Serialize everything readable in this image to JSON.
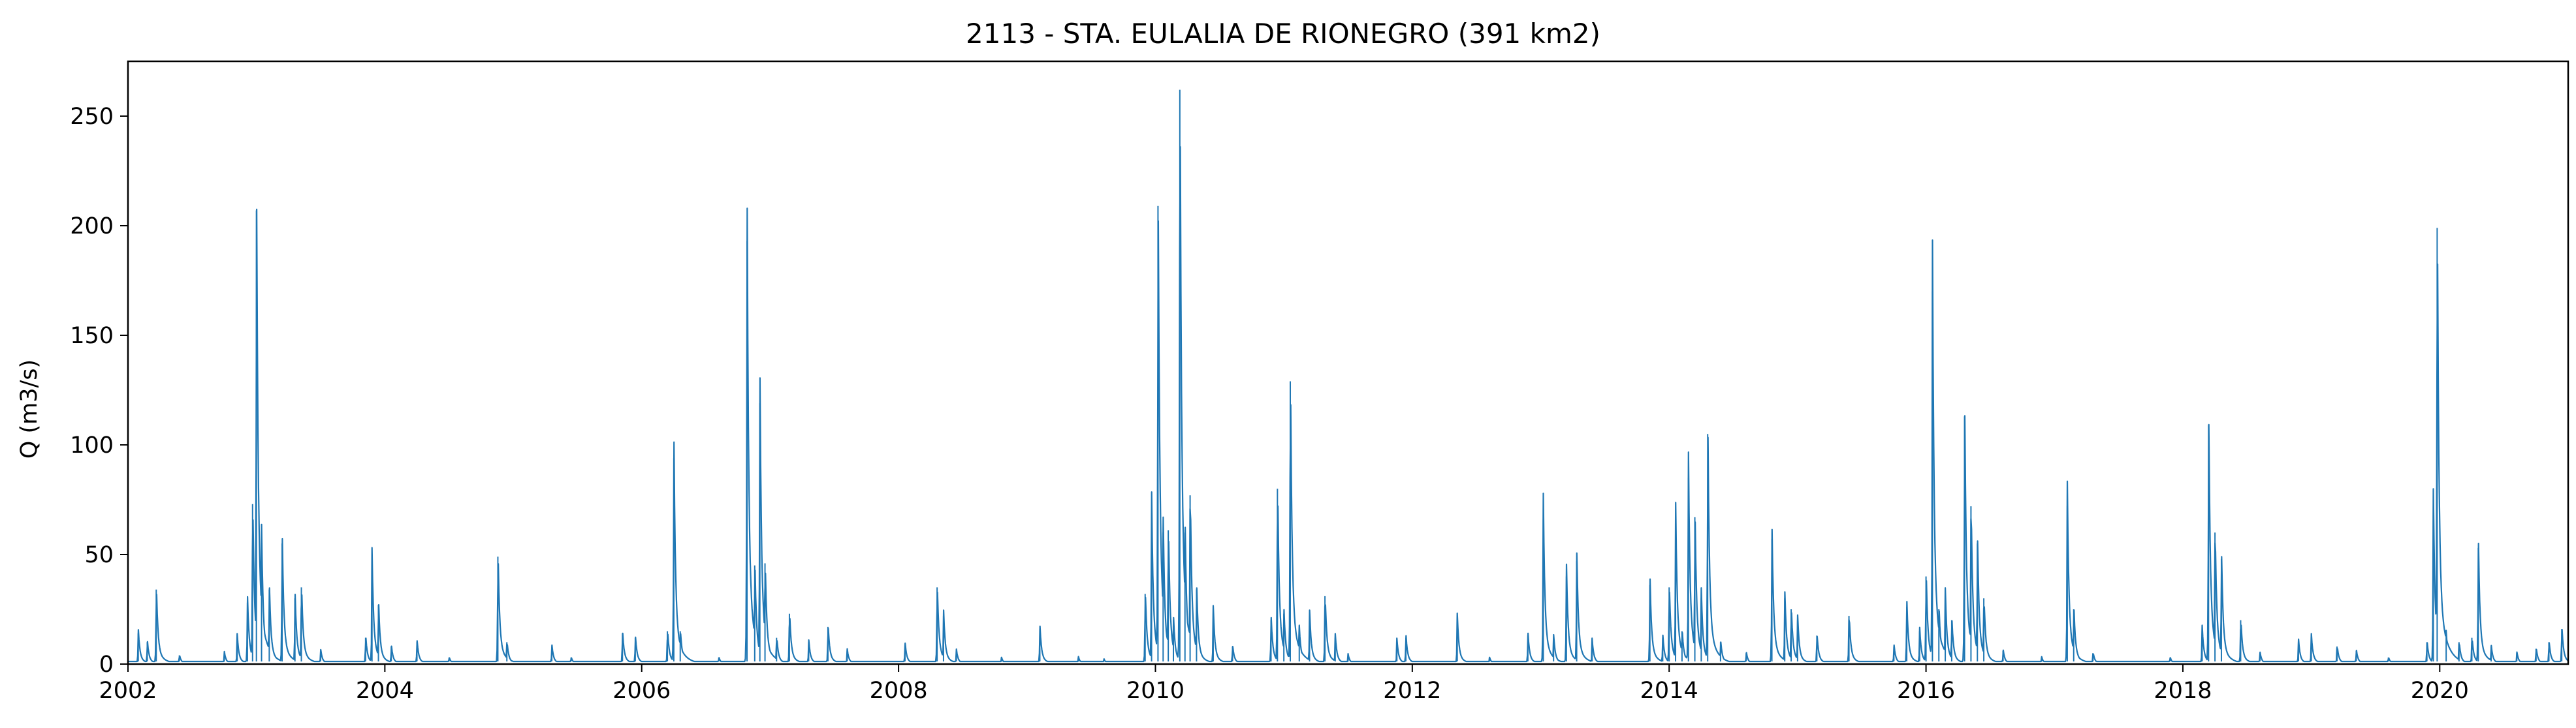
{
  "chart_data": {
    "type": "line",
    "title": "2113 - STA. EULALIA DE RIONEGRO (391 km2)",
    "xlabel": "",
    "ylabel": "Q (m3/s)",
    "xlim": [
      2002.0,
      2021.0
    ],
    "ylim": [
      0,
      275
    ],
    "x_ticks": [
      2002,
      2004,
      2006,
      2008,
      2010,
      2012,
      2014,
      2016,
      2018,
      2020
    ],
    "x_tick_labels": [
      "2002",
      "2004",
      "2006",
      "2008",
      "2010",
      "2012",
      "2014",
      "2016",
      "2018",
      "2020"
    ],
    "y_ticks": [
      0,
      50,
      100,
      150,
      200,
      250
    ],
    "y_tick_labels": [
      "0",
      "50",
      "100",
      "150",
      "200",
      "250"
    ],
    "grid": false,
    "line_color": "#1f77b4",
    "series": [
      {
        "peaks": [
          [
            2002.08,
            14
          ],
          [
            2002.15,
            10
          ],
          [
            2002.22,
            34
          ],
          [
            2002.4,
            4
          ],
          [
            2002.75,
            5
          ],
          [
            2002.85,
            12
          ],
          [
            2002.93,
            28
          ],
          [
            2002.97,
            73
          ],
          [
            2003.0,
            207
          ],
          [
            2003.04,
            55
          ],
          [
            2003.1,
            34
          ],
          [
            2003.2,
            55
          ],
          [
            2003.3,
            30
          ],
          [
            2003.35,
            35
          ],
          [
            2003.5,
            6
          ],
          [
            2003.85,
            12
          ],
          [
            2003.9,
            45
          ],
          [
            2003.95,
            27
          ],
          [
            2004.05,
            8
          ],
          [
            2004.25,
            10
          ],
          [
            2004.5,
            3
          ],
          [
            2004.88,
            49
          ],
          [
            2004.95,
            10
          ],
          [
            2005.3,
            8
          ],
          [
            2005.45,
            3
          ],
          [
            2005.85,
            14
          ],
          [
            2005.95,
            12
          ],
          [
            2006.2,
            15
          ],
          [
            2006.25,
            94
          ],
          [
            2006.3,
            15
          ],
          [
            2006.6,
            3
          ],
          [
            2006.82,
            193
          ],
          [
            2006.88,
            45
          ],
          [
            2006.92,
            119
          ],
          [
            2006.96,
            46
          ],
          [
            2007.05,
            12
          ],
          [
            2007.15,
            23
          ],
          [
            2007.3,
            10
          ],
          [
            2007.45,
            17
          ],
          [
            2007.6,
            6
          ],
          [
            2008.05,
            9
          ],
          [
            2008.3,
            35
          ],
          [
            2008.35,
            22
          ],
          [
            2008.45,
            6
          ],
          [
            2008.8,
            3
          ],
          [
            2009.1,
            16
          ],
          [
            2009.4,
            3
          ],
          [
            2009.6,
            2
          ],
          [
            2009.92,
            32
          ],
          [
            2009.97,
            69
          ],
          [
            2010.02,
            209
          ],
          [
            2010.06,
            60
          ],
          [
            2010.1,
            61
          ],
          [
            2010.14,
            20
          ],
          [
            2010.19,
            262
          ],
          [
            2010.23,
            60
          ],
          [
            2010.27,
            77
          ],
          [
            2010.32,
            34
          ],
          [
            2010.45,
            23
          ],
          [
            2010.6,
            8
          ],
          [
            2010.9,
            20
          ],
          [
            2010.95,
            80
          ],
          [
            2011.0,
            23
          ],
          [
            2011.05,
            129
          ],
          [
            2011.12,
            15
          ],
          [
            2011.2,
            22
          ],
          [
            2011.32,
            31
          ],
          [
            2011.4,
            12
          ],
          [
            2011.5,
            4
          ],
          [
            2011.88,
            10
          ],
          [
            2011.95,
            12
          ],
          [
            2012.35,
            20
          ],
          [
            2012.6,
            3
          ],
          [
            2012.9,
            13
          ],
          [
            2013.02,
            66
          ],
          [
            2013.1,
            12
          ],
          [
            2013.2,
            40
          ],
          [
            2013.28,
            47
          ],
          [
            2013.4,
            10
          ],
          [
            2013.85,
            36
          ],
          [
            2013.95,
            12
          ],
          [
            2014.0,
            35
          ],
          [
            2014.05,
            66
          ],
          [
            2014.1,
            15
          ],
          [
            2014.15,
            85
          ],
          [
            2014.2,
            67
          ],
          [
            2014.25,
            30
          ],
          [
            2014.3,
            105
          ],
          [
            2014.4,
            10
          ],
          [
            2014.6,
            5
          ],
          [
            2014.8,
            57
          ],
          [
            2014.9,
            30
          ],
          [
            2014.95,
            25
          ],
          [
            2015.0,
            20
          ],
          [
            2015.15,
            13
          ],
          [
            2015.4,
            22
          ],
          [
            2015.75,
            8
          ],
          [
            2015.85,
            26
          ],
          [
            2015.95,
            15
          ],
          [
            2016.0,
            40
          ],
          [
            2016.05,
            170
          ],
          [
            2016.1,
            25
          ],
          [
            2016.15,
            30
          ],
          [
            2016.2,
            20
          ],
          [
            2016.3,
            113
          ],
          [
            2016.35,
            72
          ],
          [
            2016.4,
            55
          ],
          [
            2016.45,
            30
          ],
          [
            2016.6,
            6
          ],
          [
            2016.9,
            3
          ],
          [
            2017.1,
            72
          ],
          [
            2017.15,
            25
          ],
          [
            2017.3,
            5
          ],
          [
            2017.9,
            3
          ],
          [
            2018.15,
            15
          ],
          [
            2018.2,
            109
          ],
          [
            2018.25,
            60
          ],
          [
            2018.3,
            48
          ],
          [
            2018.45,
            20
          ],
          [
            2018.6,
            5
          ],
          [
            2018.9,
            10
          ],
          [
            2019.0,
            12
          ],
          [
            2019.2,
            8
          ],
          [
            2019.35,
            6
          ],
          [
            2019.6,
            3
          ],
          [
            2019.9,
            10
          ],
          [
            2019.95,
            69
          ],
          [
            2019.98,
            199
          ],
          [
            2020.05,
            13
          ],
          [
            2020.15,
            10
          ],
          [
            2020.25,
            12
          ],
          [
            2020.3,
            53
          ],
          [
            2020.4,
            8
          ],
          [
            2020.6,
            5
          ],
          [
            2020.75,
            7
          ],
          [
            2020.85,
            10
          ],
          [
            2020.95,
            16
          ]
        ],
        "baseflow": 1.2
      }
    ]
  }
}
